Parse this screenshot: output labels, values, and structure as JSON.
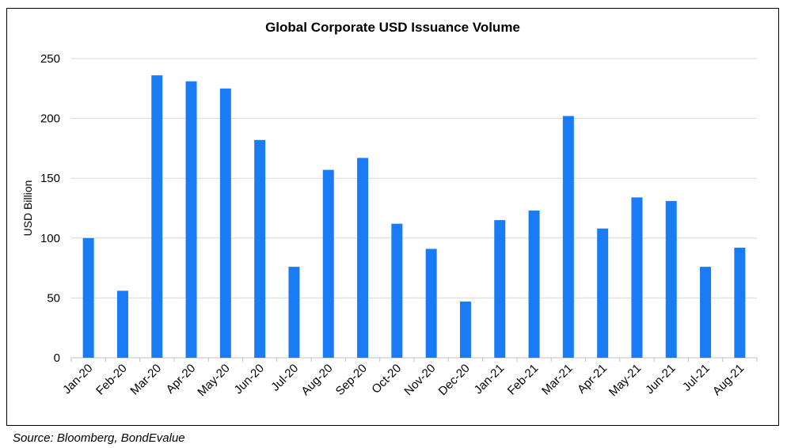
{
  "chart_data": {
    "type": "bar",
    "title": "Global Corporate USD Issuance Volume",
    "xlabel": "",
    "ylabel": "USD Billion",
    "ylim": [
      0,
      250
    ],
    "yticks": [
      0,
      50,
      100,
      150,
      200,
      250
    ],
    "grid": true,
    "legend": "none",
    "bar_color": "#1a7cf5",
    "categories": [
      "Jan-20",
      "Feb-20",
      "Mar-20",
      "Apr-20",
      "May-20",
      "Jun-20",
      "Jul-20",
      "Aug-20",
      "Sep-20",
      "Oct-20",
      "Nov-20",
      "Dec-20",
      "Jan-21",
      "Feb-21",
      "Mar-21",
      "Apr-21",
      "May-21",
      "Jun-21",
      "Jul-21",
      "Aug-21"
    ],
    "values": [
      100,
      56,
      236,
      231,
      225,
      182,
      76,
      157,
      167,
      112,
      91,
      47,
      115,
      123,
      202,
      108,
      134,
      131,
      76,
      92
    ]
  },
  "source": "Source: Bloomberg, BondEvalue"
}
